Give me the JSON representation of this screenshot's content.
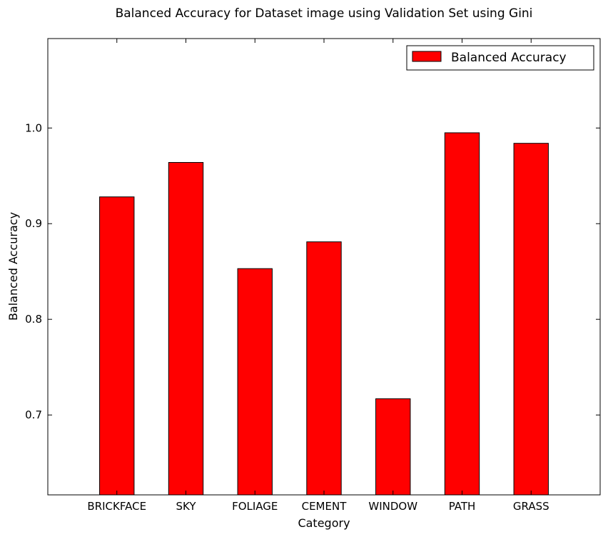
{
  "chart_data": {
    "type": "bar",
    "title": "Balanced Accuracy for Dataset image using Validation Set using Gini",
    "xlabel": "Category",
    "ylabel": "Balanced Accuracy",
    "categories": [
      "BRICKFACE",
      "SKY",
      "FOLIAGE",
      "CEMENT",
      "WINDOW",
      "PATH",
      "GRASS"
    ],
    "series": [
      {
        "name": "Balanced Accuracy",
        "values": [
          0.928,
          0.964,
          0.853,
          0.881,
          0.717,
          0.995,
          0.984
        ]
      }
    ],
    "ylim": [
      0.6165,
      1.0935
    ],
    "yticks": [
      0.7,
      0.8,
      0.9,
      1.0
    ],
    "ytick_labels": [
      "0.7",
      "0.8",
      "0.9",
      "1.0"
    ],
    "bar_color": "#ff0000",
    "grid": false,
    "legend_position": "top-right"
  }
}
